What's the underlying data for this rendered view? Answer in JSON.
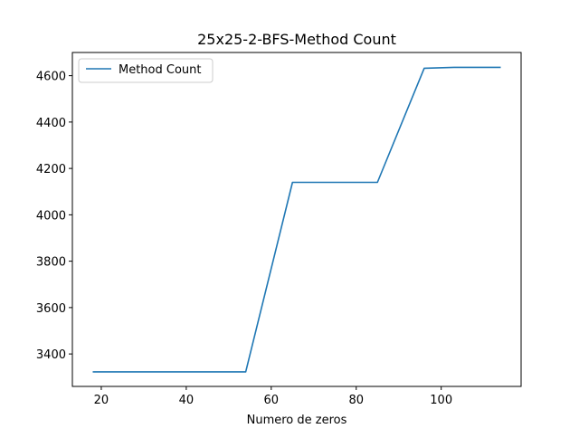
{
  "chart_data": {
    "type": "line",
    "title": "25x25-2-BFS-Method Count",
    "xlabel": "Numero de zeros",
    "ylabel": "",
    "xlim": [
      13.2,
      118.8
    ],
    "ylim": [
      3260,
      4700
    ],
    "xticks": [
      20,
      40,
      60,
      80,
      100
    ],
    "yticks": [
      3400,
      3600,
      3800,
      4000,
      4200,
      4400,
      4600
    ],
    "grid": false,
    "legend_position": "top-left",
    "series": [
      {
        "name": "Method Count",
        "color": "#1f77b4",
        "x": [
          18,
          54,
          65,
          85,
          96,
          103,
          114
        ],
        "y": [
          3323,
          3323,
          4140,
          4140,
          4632,
          4636,
          4636
        ]
      }
    ]
  }
}
